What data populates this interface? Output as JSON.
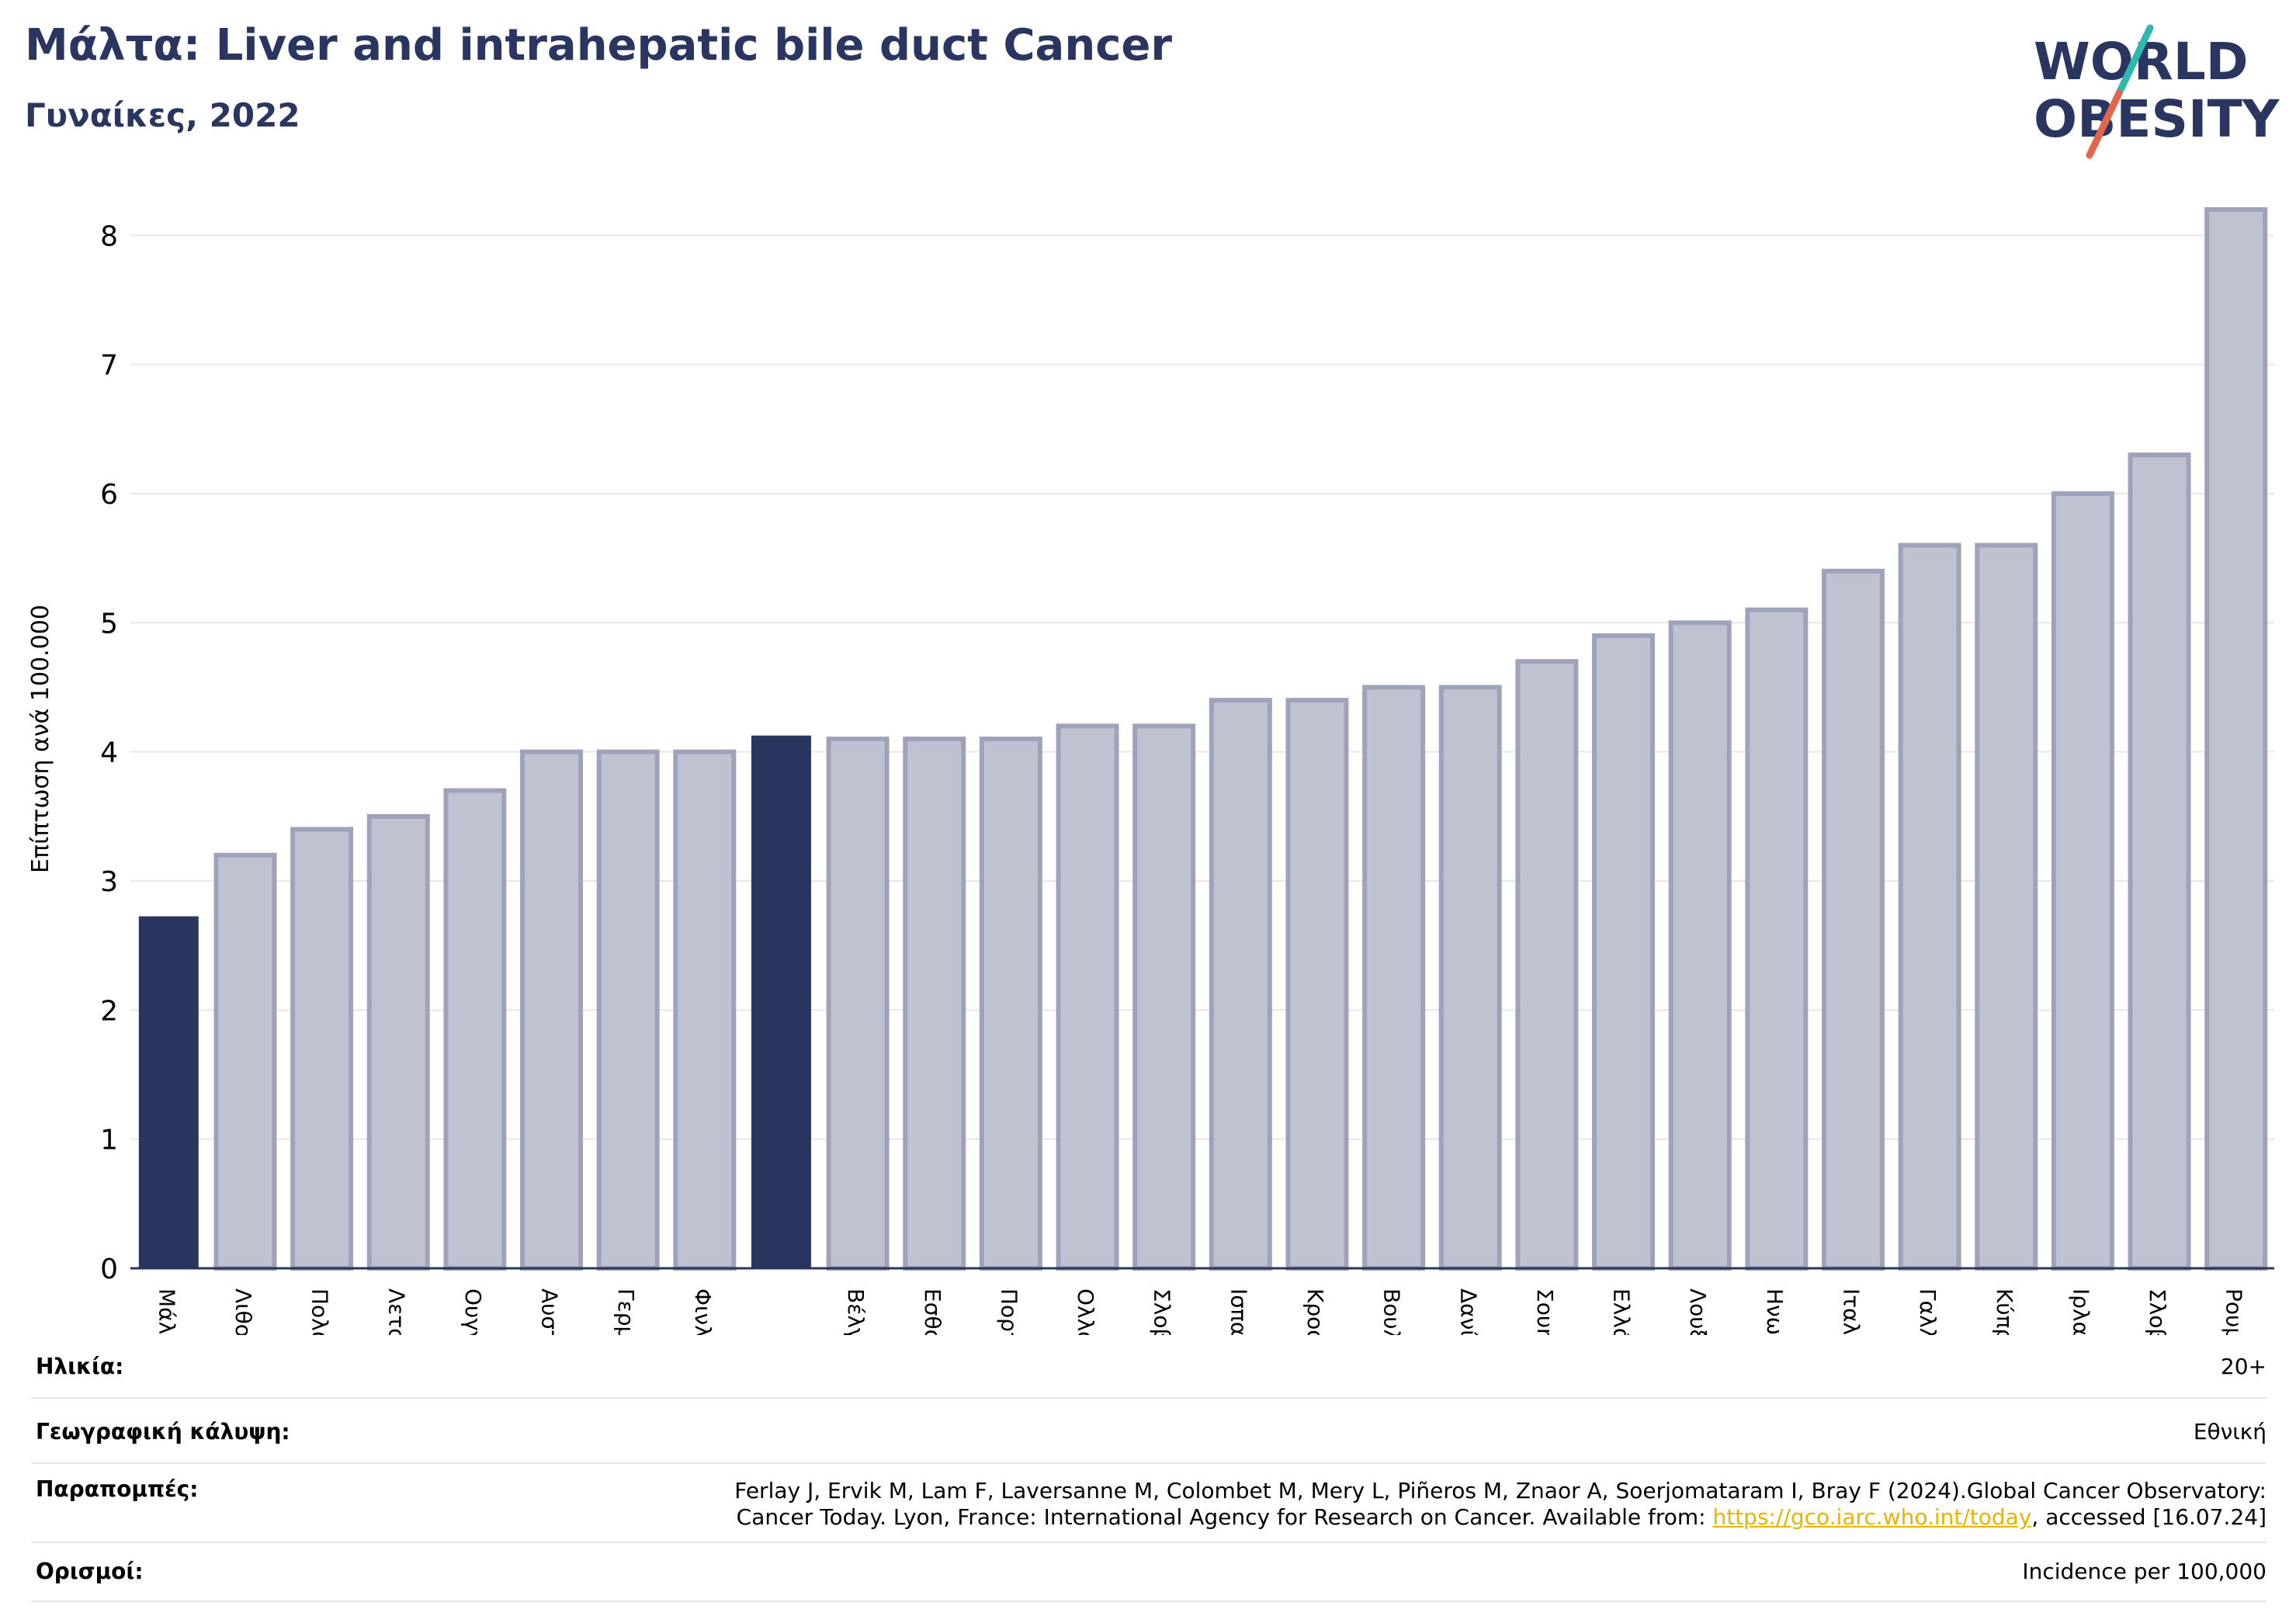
{
  "title": "Μάλτα: Liver and intrahepatic bile duct Cancer",
  "subtitle": "Γυναίκες, 2022",
  "logo": {
    "line1": "WORLD",
    "line2": "OBESITY"
  },
  "colors": {
    "highlight": "#2a3560",
    "bar_fill": "#bfc2d0",
    "bar_stroke": "#9ea3b9",
    "title": "#2a3560",
    "link": "#e8b400"
  },
  "chart_data": {
    "type": "bar",
    "ylabel": "Επίπτωση ανά 100.000",
    "xlabel": "",
    "ylim": [
      0,
      8.2
    ],
    "yticks": [
      0,
      1,
      2,
      3,
      4,
      5,
      6,
      7,
      8
    ],
    "grid": true,
    "categories": [
      "Μάλτα",
      "Λιθουανία",
      "Πολωνία",
      "Λετονία",
      "Ουγγαρία",
      "Αυστρία",
      "Γερμανία",
      "Φινλανδία",
      "",
      "Βέλγιο",
      "Εσθονία",
      "Πορτογαλία",
      "Ολλανδία",
      "Σλοβακία",
      "Ισπανία",
      "Κροατία",
      "Βουλγαρία",
      "Δανία",
      "Σουηδία",
      "Ελλάδα",
      "Λουξεμβούργο",
      "Ηνωμένο Βασίλειο",
      "Ιταλία",
      "Γαλλία",
      "Κύπρος",
      "Ιρλανδία",
      "Σλοβενία",
      "Ρουμανία"
    ],
    "values": [
      2.72,
      3.2,
      3.4,
      3.5,
      3.7,
      4.0,
      4.0,
      4.0,
      4.12,
      4.1,
      4.1,
      4.1,
      4.2,
      4.2,
      4.4,
      4.4,
      4.5,
      4.5,
      4.7,
      4.9,
      5.0,
      5.1,
      5.4,
      5.6,
      5.6,
      6.0,
      6.3,
      8.2
    ],
    "highlighted": [
      0,
      8
    ]
  },
  "meta": {
    "age_label": "Ηλικία:",
    "age_value": "20+",
    "coverage_label": "Γεωγραφική κάλυψη:",
    "coverage_value": "Εθνική",
    "refs_label": "Παραπομπές:",
    "refs_line1": "Ferlay J, Ervik M, Lam F, Laversanne M, Colombet M, Mery L, Piñeros M, Znaor A, Soerjomataram I, Bray F (2024).Global Cancer Observatory:",
    "refs_line2_pre": "Cancer Today. Lyon, France: International Agency for Research on Cancer. Available from: ",
    "refs_link": "https://gco.iarc.who.int/today",
    "refs_line2_post": ", accessed [16.07.24]",
    "def_label": "Ορισμοί:",
    "def_value": "Incidence per 100,000"
  }
}
